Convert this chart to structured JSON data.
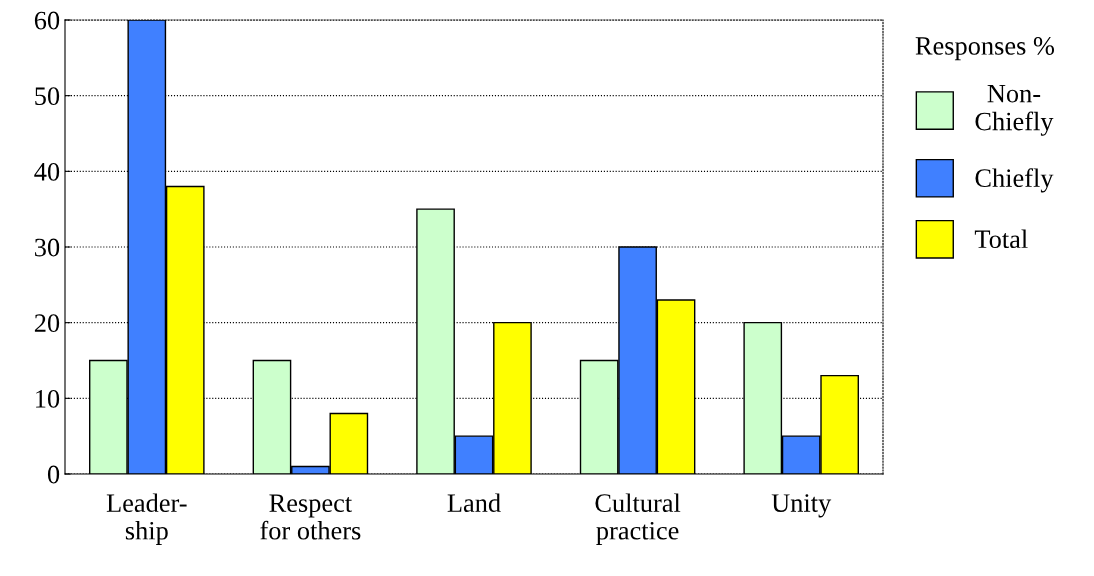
{
  "chart_data": {
    "type": "bar",
    "categories": [
      "Leader-\nship",
      "Respect\nfor others",
      "Land",
      "Cultural\npractice",
      "Unity"
    ],
    "series": [
      {
        "name": "Non-\nChiefly",
        "color": "#ccffcc",
        "values": [
          15,
          15,
          35,
          15,
          20
        ]
      },
      {
        "name": "Chiefly",
        "color": "#4080ff",
        "values": [
          60,
          1,
          5,
          30,
          5
        ]
      },
      {
        "name": "Total",
        "color": "#ffff00",
        "values": [
          38,
          8,
          20,
          23,
          13
        ]
      }
    ],
    "legend_title": "Responses %",
    "legend": "right",
    "grid": "y",
    "ylim": [
      0,
      60
    ],
    "yticks": [
      0,
      10,
      20,
      30,
      40,
      50,
      60
    ]
  }
}
